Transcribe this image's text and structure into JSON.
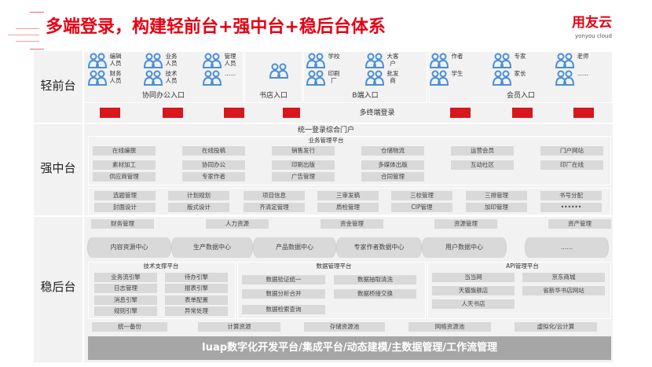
{
  "header": {
    "title": "多端登录，构建轻前台+强中台+稳后台体系",
    "logo": "用友云",
    "logo_sub": "yonyou cloud"
  },
  "layers": {
    "front": "轻前台",
    "middle": "强中台",
    "back": "稳后台"
  },
  "front": {
    "groups": [
      {
        "label": "协同办公入口",
        "users": [
          "编辑\n人员",
          "业务\n人员",
          "管理\n人员",
          "财务\n人员",
          "技术\n人员",
          "......"
        ]
      },
      {
        "label": "书店入口",
        "users": [
          ""
        ]
      },
      {
        "label": "B端入口",
        "users": [
          "学校",
          "大客\n户",
          "印刷\n厂",
          "批发\n商"
        ]
      },
      {
        "label": "会员入口",
        "users": [
          "作者",
          "专家",
          "老师",
          "学生",
          "家长",
          "......"
        ]
      }
    ],
    "multi_login": "多终端登录",
    "devices": [
      "desktop-icon",
      "desktop-icon",
      "printer-icon",
      "tablet-icon",
      "laptop-icon",
      "monitor-icon",
      "tv-icon"
    ],
    "device_color": "#d7161e"
  },
  "middle": {
    "portal": "统一登录综合门户",
    "biz_title": "业务管理平台",
    "biz_rows": [
      [
        "在线编撰",
        "在线投稿",
        "销售发行",
        "仓储物流",
        "运营会员",
        "门户网站"
      ],
      [
        "素材加工",
        "协同办公",
        "印刷出版",
        "多媒体出版",
        "互动社区",
        "印厂在线"
      ],
      [
        "供应商管理",
        "专家作者",
        "广告管理",
        "合同管理"
      ]
    ],
    "prod_rows": [
      [
        "选题管理",
        "计划规划",
        "项目信息",
        "三审发稿",
        "三校管理",
        "三排管理",
        "书号分配"
      ],
      [
        "封面设计",
        "版式设计",
        "齐清定管理",
        "质检管理",
        "CIP管理",
        "加印管理",
        "••••••"
      ]
    ]
  },
  "back": {
    "mgmt": [
      "财务管理",
      "人力资源",
      "资金管理",
      "资源管理",
      "资产管理"
    ],
    "data_centers": [
      "内容资源中心",
      "生产数据中心",
      "产品数据中心",
      "专家作者数据中心",
      "用户数据中心",
      "......"
    ],
    "tech": {
      "title": "技术支撑平台",
      "items": [
        "业务流引擎",
        "待办引擎",
        "日志管理",
        "报表引擎",
        "消息引擎",
        "表单配置",
        "规则引擎",
        "异常处理"
      ]
    },
    "datamgmt": {
      "title": "数据管理平台",
      "left": [
        "数据验证统一",
        "数据分析合并",
        "数据检索查询"
      ],
      "right": [
        "数据抽取清洗",
        "数据桥接交换"
      ]
    },
    "api": {
      "title": "API管理平台",
      "items": [
        "当当网",
        "京东商城",
        "天猫旗舰店",
        "省新华书店网站",
        "人天书店"
      ]
    },
    "infra": [
      "统一备份",
      "计算资源",
      "存储资源池",
      "网络资源池",
      "虚拟化/云计算"
    ],
    "iuap": "Iuap数字化开发平台/集成平台/动态建模/主数据管理/工作流管理"
  },
  "colors": {
    "title": "#e60012",
    "user_icon": "#4a8fd6",
    "box": "#d9d9d9",
    "panel": "#f2f2f2"
  }
}
